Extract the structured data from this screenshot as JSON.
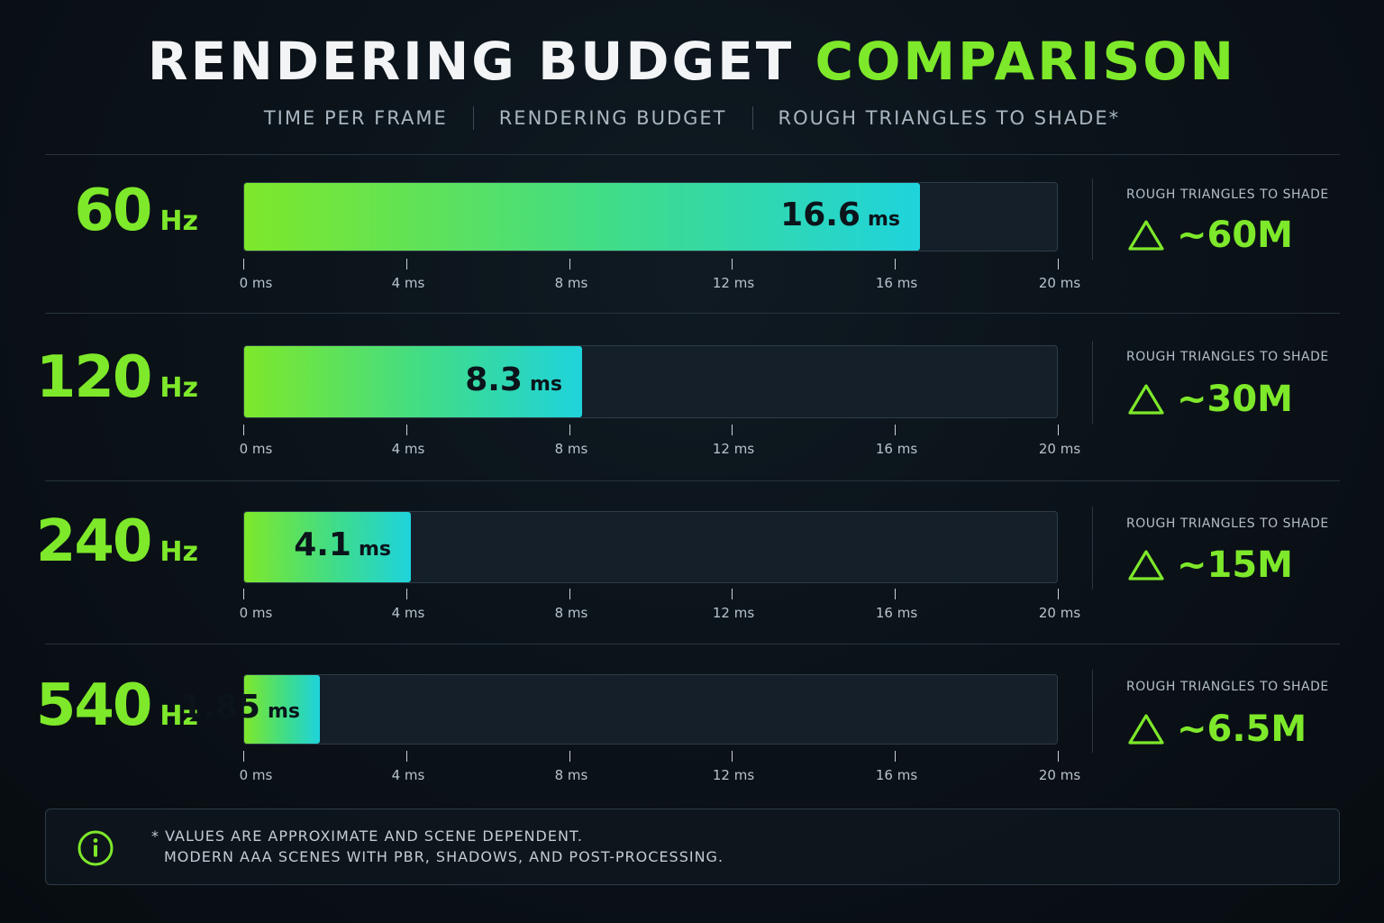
{
  "title": {
    "part1": "RENDERING BUDGET",
    "part2": "COMPARISON"
  },
  "subtitle": [
    "TIME PER FRAME",
    "RENDERING BUDGET",
    "ROUGH TRIANGLES TO SHADE*"
  ],
  "colors": {
    "accent": "#7ee82a",
    "bar_start": "#7ee82a",
    "bar_end": "#1fd3dc",
    "background": "#0a1117"
  },
  "chart_data": {
    "type": "bar",
    "orientation": "horizontal",
    "unit": "ms",
    "xlim": [
      0,
      20
    ],
    "tick_labels": [
      "0 ms",
      "4 ms",
      "8 ms",
      "12 ms",
      "16 ms",
      "20 ms"
    ],
    "categories": [
      "60 Hz",
      "120 Hz",
      "240 Hz",
      "540 Hz"
    ],
    "values": [
      16.6,
      8.3,
      4.1,
      1.85
    ],
    "rows": [
      {
        "hz": "60",
        "hz_unit": "Hz",
        "value": 16.6,
        "value_label": "16.6",
        "value_unit": "ms",
        "triangles_heading": "ROUGH TRIANGLES TO SHADE",
        "triangles": "~60M"
      },
      {
        "hz": "120",
        "hz_unit": "Hz",
        "value": 8.3,
        "value_label": "8.3",
        "value_unit": "ms",
        "triangles_heading": "ROUGH TRIANGLES TO SHADE",
        "triangles": "~30M"
      },
      {
        "hz": "240",
        "hz_unit": "Hz",
        "value": 4.1,
        "value_label": "4.1",
        "value_unit": "ms",
        "triangles_heading": "ROUGH TRIANGLES TO SHADE",
        "triangles": "~15M"
      },
      {
        "hz": "540",
        "hz_unit": "Hz",
        "value": 1.85,
        "value_label": "1.85",
        "value_unit": "ms",
        "triangles_heading": "ROUGH TRIANGLES TO SHADE",
        "triangles": "~6.5M"
      }
    ]
  },
  "note": {
    "icon": "info-icon",
    "line1": "* VALUES ARE APPROXIMATE AND SCENE DEPENDENT.",
    "line2": "MODERN AAA SCENES WITH PBR, SHADOWS, AND POST-PROCESSING."
  }
}
